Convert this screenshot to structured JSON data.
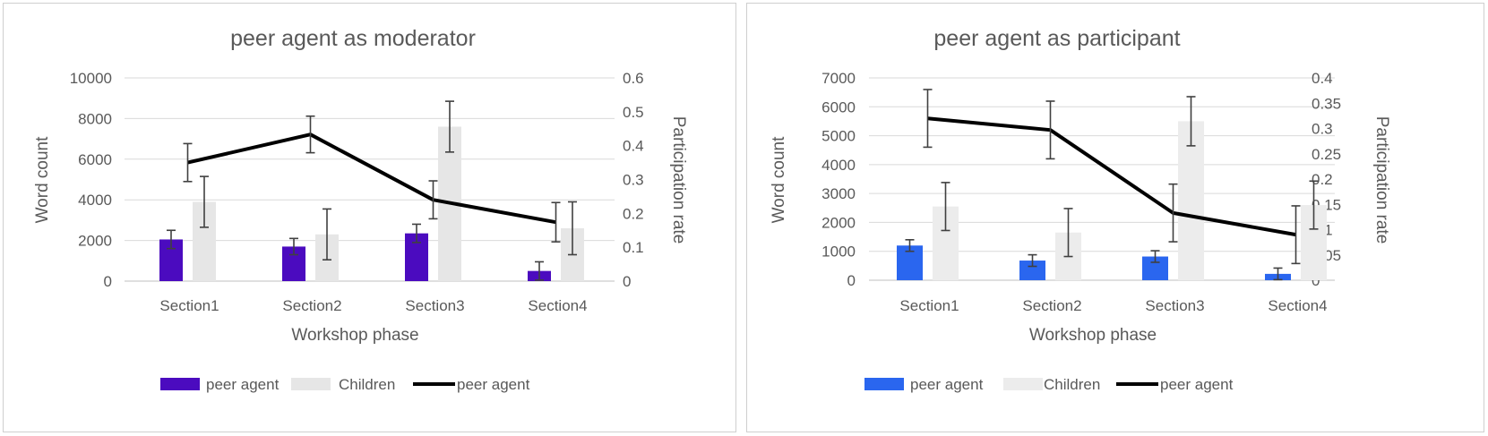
{
  "chart_data": [
    {
      "type": "bar",
      "title": "peer agent as moderator",
      "xlabel": "Workshop phase",
      "ylabel": "Word count",
      "y2label": "Participation rate",
      "categories": [
        "Section1",
        "Section2",
        "Section3",
        "Section4"
      ],
      "ylim": [
        0,
        10000
      ],
      "yticks": [
        0,
        2000,
        4000,
        6000,
        8000,
        10000
      ],
      "y2lim": [
        0,
        0.6
      ],
      "y2ticks": [
        "0",
        "0.1",
        "0.2",
        "0.3",
        "0.4",
        "0.5",
        "0.6"
      ],
      "grid": true,
      "legend_position": "bottom",
      "series": [
        {
          "name": "peer agent",
          "kind": "bar",
          "axis": "left",
          "color": "#4b0bbf",
          "values": [
            2050,
            1700,
            2350,
            500
          ],
          "error": [
            450,
            400,
            450,
            450
          ]
        },
        {
          "name": "Children",
          "kind": "bar",
          "axis": "left",
          "color": "#e6e6e6",
          "values": [
            3900,
            2300,
            7600,
            2600
          ],
          "error": [
            1250,
            1250,
            1250,
            1300
          ]
        },
        {
          "name": "peer agent",
          "kind": "line",
          "axis": "right",
          "color": "#000000",
          "values": [
            0.35,
            0.433,
            0.24,
            0.174
          ],
          "error": [
            0.056,
            0.054,
            0.056,
            0.058
          ]
        }
      ]
    },
    {
      "type": "bar",
      "title": "peer agent as participant",
      "xlabel": "Workshop phase",
      "ylabel": "Word count",
      "y2label": "Participation rate",
      "categories": [
        "Section1",
        "Section2",
        "Section3",
        "Section4"
      ],
      "ylim": [
        0,
        7000
      ],
      "yticks": [
        0,
        1000,
        2000,
        3000,
        4000,
        5000,
        6000,
        7000
      ],
      "y2lim": [
        0,
        0.4
      ],
      "y2ticks": [
        "0",
        "0.05",
        "0.1",
        "0.15",
        "0.2",
        "0.25",
        "0.3",
        "0.35",
        "0.4"
      ],
      "grid": true,
      "legend_position": "bottom",
      "series": [
        {
          "name": "peer agent",
          "kind": "bar",
          "axis": "left",
          "color": "#2a66ef",
          "values": [
            1200,
            680,
            820,
            220
          ],
          "error": [
            200,
            200,
            200,
            200
          ]
        },
        {
          "name": "Children",
          "kind": "bar",
          "axis": "left",
          "color": "#ececec",
          "values": [
            2550,
            1650,
            5500,
            2600
          ],
          "error": [
            830,
            830,
            850,
            830
          ]
        },
        {
          "name": "peer agent",
          "kind": "line",
          "axis": "right",
          "color": "#000000",
          "values": [
            0.32,
            0.297,
            0.133,
            0.09
          ],
          "error": [
            0.057,
            0.057,
            0.057,
            0.057
          ]
        }
      ]
    }
  ]
}
